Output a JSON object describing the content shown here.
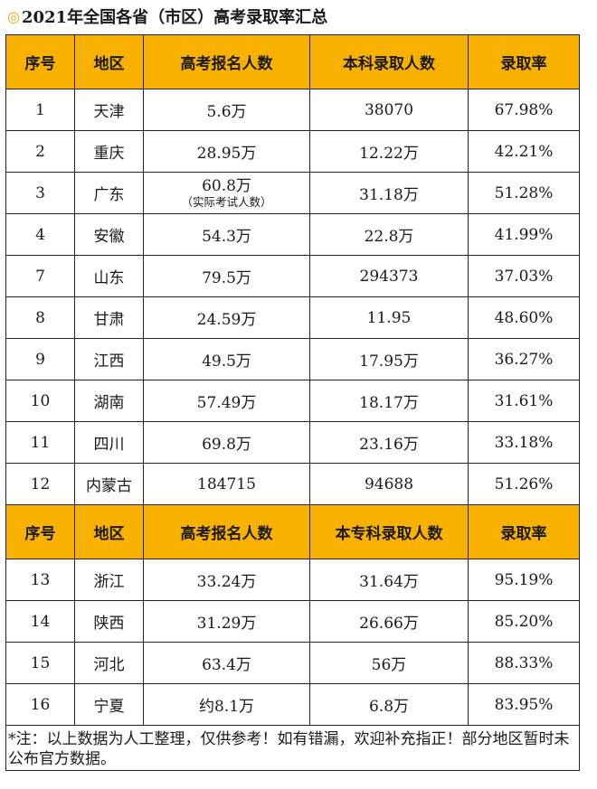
{
  "title": {
    "mark": "◎",
    "text": "2021年全国各省（市区）高考录取率汇总"
  },
  "header1": [
    "序号",
    "地区",
    "高考报名人数",
    "本科录取人数",
    "录取率"
  ],
  "header2": [
    "序号",
    "地区",
    "高考报名人数",
    "本专科录取人数",
    "录取率"
  ],
  "rows1": [
    {
      "no": "1",
      "region": "天津",
      "applicants": "5.6万",
      "applicants_note": "",
      "admitted": "38070",
      "rate": "67.98%"
    },
    {
      "no": "2",
      "region": "重庆",
      "applicants": "28.95万",
      "applicants_note": "",
      "admitted": "12.22万",
      "rate": "42.21%"
    },
    {
      "no": "3",
      "region": "广东",
      "applicants": "60.8万",
      "applicants_note": "（实际考试人数）",
      "admitted": "31.18万",
      "rate": "51.28%"
    },
    {
      "no": "4",
      "region": "安徽",
      "applicants": "54.3万",
      "applicants_note": "",
      "admitted": "22.8万",
      "rate": "41.99%"
    },
    {
      "no": "7",
      "region": "山东",
      "applicants": "79.5万",
      "applicants_note": "",
      "admitted": "294373",
      "rate": "37.03%"
    },
    {
      "no": "8",
      "region": "甘肃",
      "applicants": "24.59万",
      "applicants_note": "",
      "admitted": "11.95",
      "rate": "48.60%"
    },
    {
      "no": "9",
      "region": "江西",
      "applicants": "49.5万",
      "applicants_note": "",
      "admitted": "17.95万",
      "rate": "36.27%"
    },
    {
      "no": "10",
      "region": "湖南",
      "applicants": "57.49万",
      "applicants_note": "",
      "admitted": "18.17万",
      "rate": "31.61%"
    },
    {
      "no": "11",
      "region": "四川",
      "applicants": "69.8万",
      "applicants_note": "",
      "admitted": "23.16万",
      "rate": "33.18%"
    },
    {
      "no": "12",
      "region": "内蒙古",
      "applicants": "184715",
      "applicants_note": "",
      "admitted": "94688",
      "rate": "51.26%"
    }
  ],
  "rows2": [
    {
      "no": "13",
      "region": "浙江",
      "applicants": "33.24万",
      "admitted": "31.64万",
      "rate": "95.19%"
    },
    {
      "no": "14",
      "region": "陕西",
      "applicants": "31.29万",
      "admitted": "26.66万",
      "rate": "85.20%"
    },
    {
      "no": "15",
      "region": "河北",
      "applicants": "63.4万",
      "admitted": "56万",
      "rate": "88.33%"
    },
    {
      "no": "16",
      "region": "宁夏",
      "applicants": "约8.1万",
      "admitted": "6.8万",
      "rate": "83.95%"
    }
  ],
  "note": "*注：以上数据为人工整理，仅供参考！如有错漏，欢迎补充指正！部分地区暂时未公布官方数据。",
  "colors": {
    "header_bg": "#F9B100",
    "title_mark": "#F0A500",
    "border": "#222222"
  }
}
